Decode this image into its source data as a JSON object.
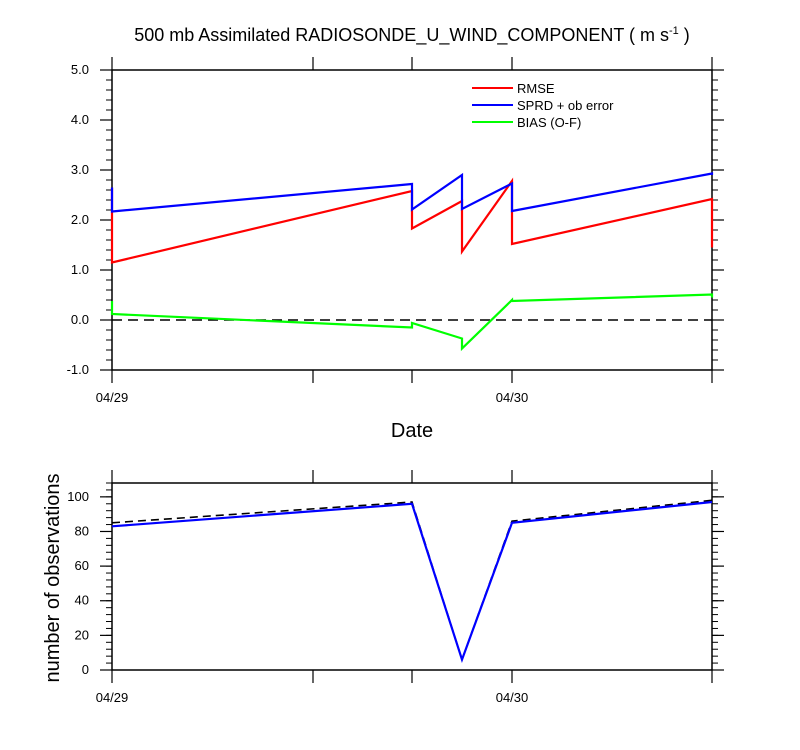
{
  "chart_data": [
    {
      "type": "line",
      "title": "500 mb Assimilated RADIOSONDE_U_WIND_COMPONENT ( m s",
      "title_sup": "-1",
      "title_tail": " )",
      "xlabel": "Date",
      "ylabel": "",
      "ylim": [
        -1.0,
        5.0
      ],
      "yticks": [
        "5.0",
        "4.0",
        "3.0",
        "2.0",
        "1.0",
        "0.0",
        "-1.0"
      ],
      "xlim": [
        "04/29 00Z",
        "04/30 12Z"
      ],
      "xtick_labels": [
        {
          "label": "04/29",
          "x": "04/29 00Z"
        },
        {
          "label": "04/30",
          "x": "04/30 00Z"
        }
      ],
      "reference_line": {
        "y": 0.0,
        "style": "dashed"
      },
      "legend": {
        "placement": "top-right"
      },
      "series": [
        {
          "name": "RMSE",
          "color": "#ff0000",
          "points": [
            [
              "04/29 00Z",
              2.65
            ],
            [
              "04/29 00Z",
              1.15
            ],
            [
              "04/29 18Z",
              2.58
            ],
            [
              "04/29 18Z",
              1.83
            ],
            [
              "04/29 21Z",
              2.38
            ],
            [
              "04/29 21Z",
              1.37
            ],
            [
              "04/30 00Z",
              2.78
            ],
            [
              "04/30 00Z",
              1.52
            ],
            [
              "04/30 12Z",
              2.42
            ],
            [
              "04/30 12Z",
              1.45
            ]
          ]
        },
        {
          "name": "SPRD + ob error",
          "color": "#0000ff",
          "points": [
            [
              "04/29 00Z",
              2.65
            ],
            [
              "04/29 00Z",
              2.17
            ],
            [
              "04/29 18Z",
              2.72
            ],
            [
              "04/29 18Z",
              2.21
            ],
            [
              "04/29 21Z",
              2.9
            ],
            [
              "04/29 21Z",
              2.22
            ],
            [
              "04/30 00Z",
              2.73
            ],
            [
              "04/30 00Z",
              2.18
            ],
            [
              "04/30 12Z",
              2.93
            ],
            [
              "04/30 12Z",
              2.9
            ]
          ]
        },
        {
          "name": "BIAS (O-F)",
          "color": "#00ff00",
          "points": [
            [
              "04/29 00Z",
              0.38
            ],
            [
              "04/29 00Z",
              0.12
            ],
            [
              "04/29 18Z",
              -0.15
            ],
            [
              "04/29 18Z",
              -0.06
            ],
            [
              "04/29 21Z",
              -0.37
            ],
            [
              "04/29 21Z",
              -0.57
            ],
            [
              "04/30 00Z",
              0.4
            ],
            [
              "04/30 00Z",
              0.38
            ],
            [
              "04/30 12Z",
              0.51
            ],
            [
              "04/30 12Z",
              0.45
            ]
          ]
        }
      ]
    },
    {
      "type": "line",
      "title": "",
      "xlabel": "",
      "ylabel": "number of observations",
      "ylim": [
        0,
        108
      ],
      "yticks": [
        "100",
        "80",
        "60",
        "40",
        "20",
        "0"
      ],
      "xlim": [
        "04/29 00Z",
        "04/30 12Z"
      ],
      "xtick_labels": [
        {
          "label": "04/29",
          "x": "04/29 00Z"
        },
        {
          "label": "04/30",
          "x": "04/30 00Z"
        }
      ],
      "series": [
        {
          "style": "dashed",
          "color": "#000000",
          "points": [
            [
              "04/29 00Z",
              85
            ],
            [
              "04/29 18Z",
              97
            ],
            [
              "04/29 21Z",
              6
            ],
            [
              "04/30 00Z",
              86
            ],
            [
              "04/30 12Z",
              98
            ]
          ]
        },
        {
          "style": "solid",
          "color": "#0000ff",
          "points": [
            [
              "04/29 00Z",
              83
            ],
            [
              "04/29 18Z",
              96
            ],
            [
              "04/29 21Z",
              6
            ],
            [
              "04/30 00Z",
              85
            ],
            [
              "04/30 12Z",
              97
            ]
          ]
        }
      ]
    }
  ]
}
